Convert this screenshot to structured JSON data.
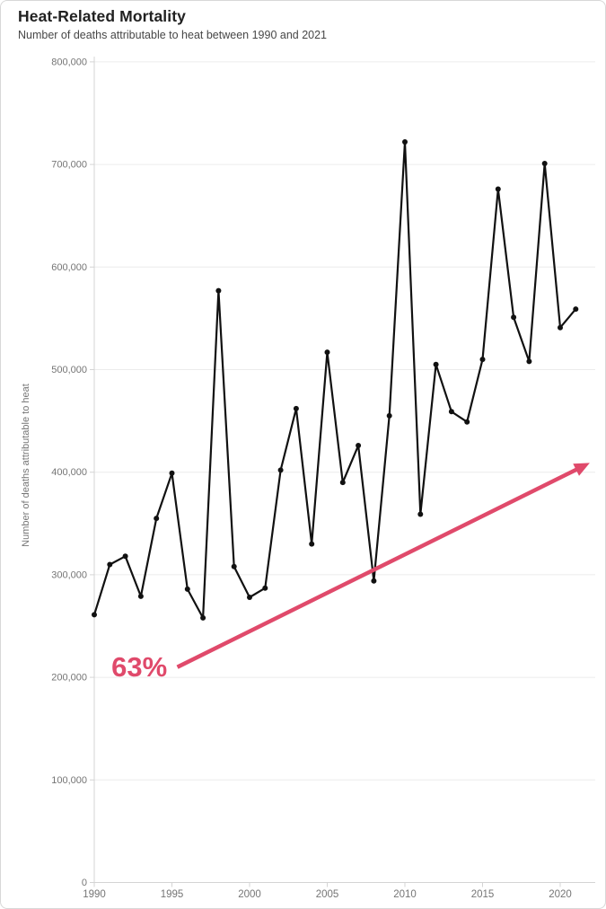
{
  "chart_data": {
    "type": "line",
    "title": "Heat-Related Mortality",
    "subtitle": "Number of deaths attributable to heat between 1990 and 2021",
    "ylabel": "Number of deaths attributable to heat",
    "xlabel": "",
    "series_name": "Deaths attributable to heat",
    "x": [
      1990,
      1991,
      1992,
      1993,
      1994,
      1995,
      1996,
      1997,
      1998,
      1999,
      2000,
      2001,
      2002,
      2003,
      2004,
      2005,
      2006,
      2007,
      2008,
      2009,
      2010,
      2011,
      2012,
      2013,
      2014,
      2015,
      2016,
      2017,
      2018,
      2019,
      2020,
      2021
    ],
    "values": [
      261000,
      310000,
      318000,
      279000,
      355000,
      399000,
      286000,
      258000,
      577000,
      308000,
      278000,
      287000,
      402000,
      462000,
      330000,
      517000,
      390000,
      426000,
      294000,
      455000,
      722000,
      359000,
      505000,
      459000,
      449000,
      510000,
      676000,
      551000,
      508000,
      701000,
      541000,
      559000
    ],
    "xlim": [
      1990,
      2022.3
    ],
    "ylim": [
      0,
      800000
    ],
    "x_ticks": [
      1990,
      1995,
      2000,
      2005,
      2010,
      2015,
      2020
    ],
    "x_tick_labels": [
      "1990",
      "1995",
      "2000",
      "2005",
      "2010",
      "2015",
      "2020"
    ],
    "y_ticks": [
      0,
      100000,
      200000,
      300000,
      400000,
      500000,
      600000,
      700000,
      800000
    ],
    "y_tick_labels": [
      "0",
      "100,000",
      "200,000",
      "300,000",
      "400,000",
      "500,000",
      "600,000",
      "700,000",
      "800,000"
    ],
    "grid": "horizontal-only",
    "legend": "none",
    "line_color": "#111111",
    "marker": "filled-circle",
    "accent_color": "#e04a6b",
    "annotation": {
      "label": "63%",
      "x": 1992.9,
      "y": 210000
    },
    "trend_arrow": {
      "x1": 1995.35,
      "y1": 210000,
      "x2": 2021.9,
      "y2": 409000
    }
  },
  "colors": {
    "title": "#212121",
    "subtitle": "#474747",
    "axis_text": "#757575",
    "grid": "#ececec",
    "axis_line": "#d4d4d4",
    "border": "#d8d8d8",
    "background": "#ffffff"
  }
}
